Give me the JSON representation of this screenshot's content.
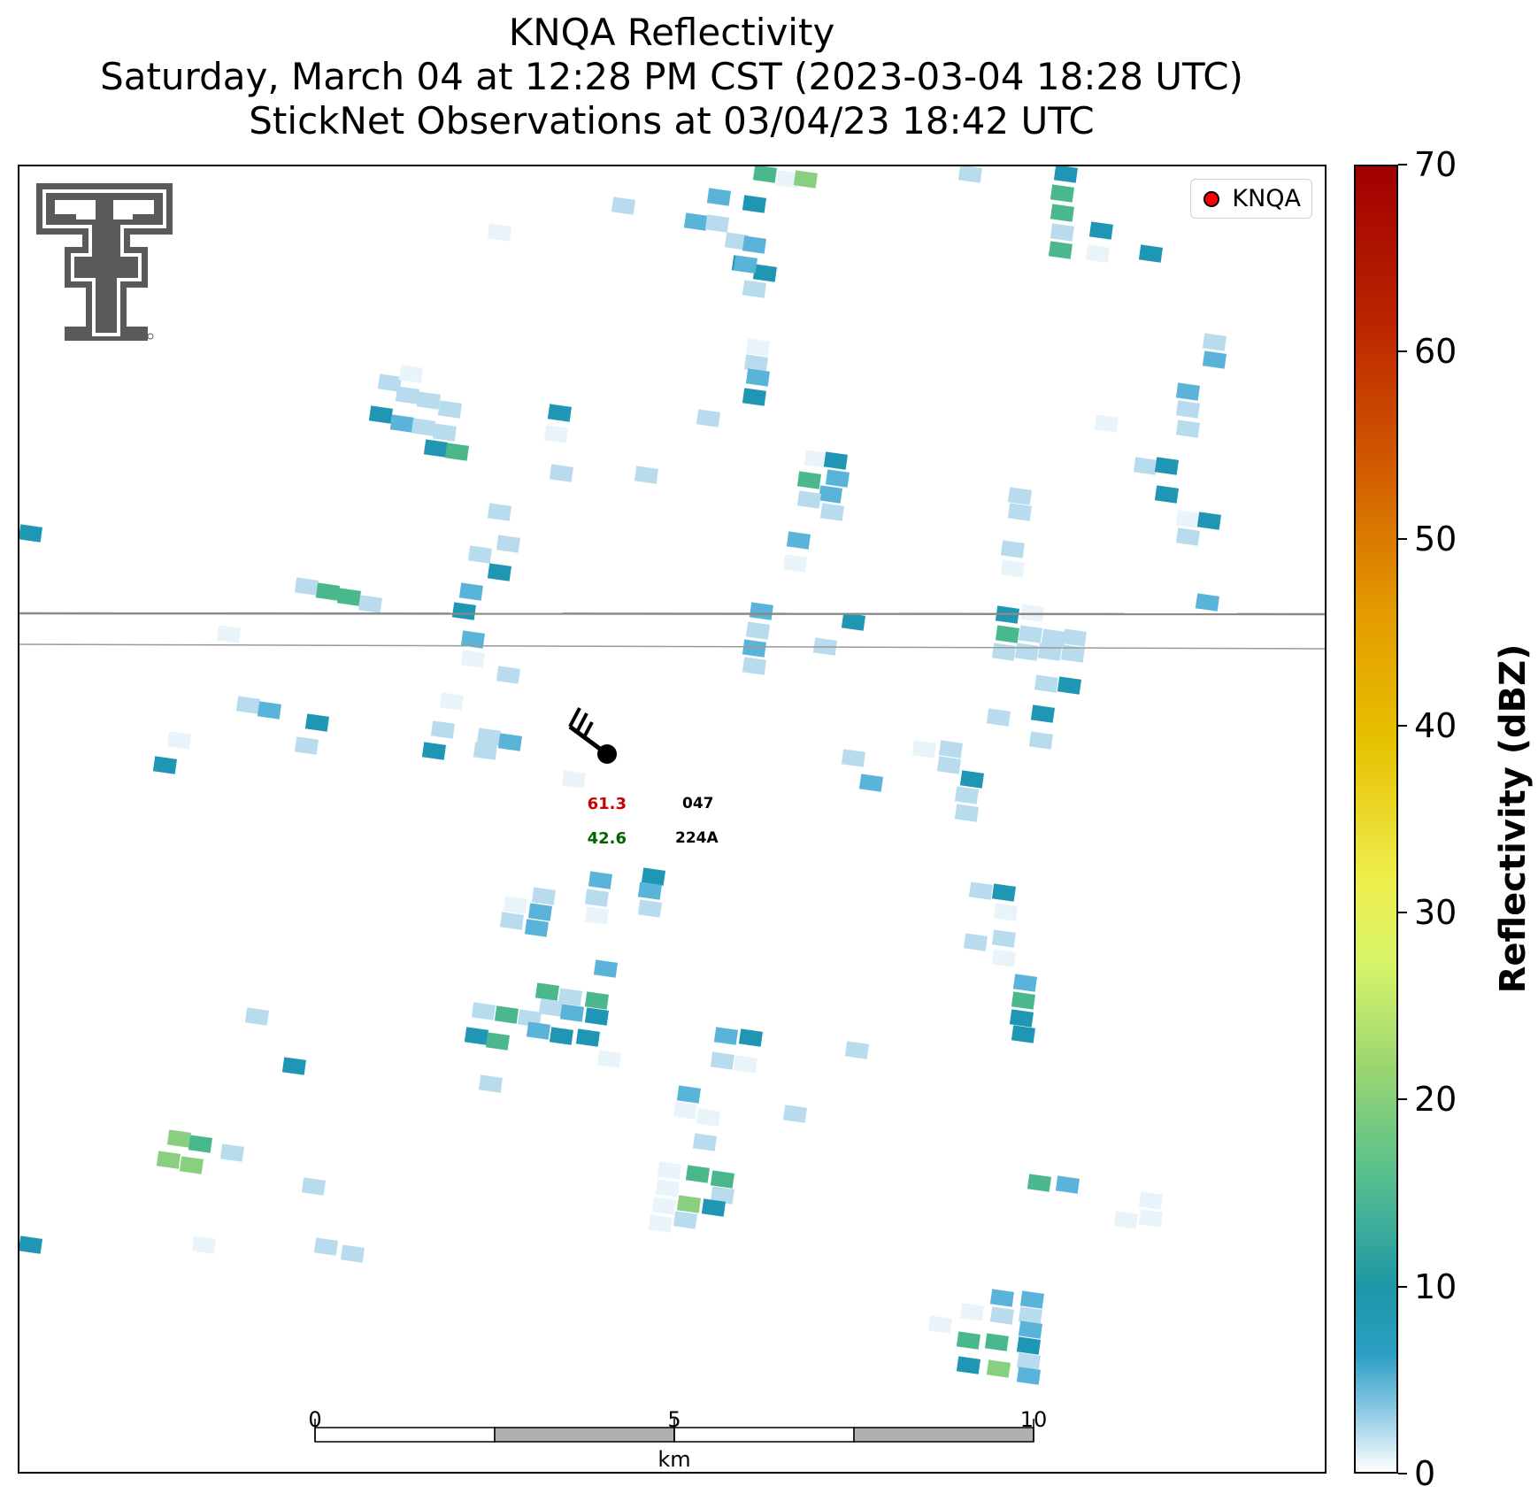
{
  "title": {
    "line1": "KNQA Reflectivity",
    "line2": "Saturday, March 04 at 12:28 PM CST (2023-03-04 18:28 UTC)",
    "line3": "StickNet Observations at 03/04/23 18:42 UTC"
  },
  "legend": {
    "label": "KNQA",
    "marker_color": "#ff0000"
  },
  "station": {
    "temperature": "61.3",
    "dewpoint": "42.6",
    "pressure_code": "047",
    "station_id": "224A",
    "temperature_color": "#cc0000",
    "dewpoint_color": "#006400"
  },
  "scale_bar": {
    "labels": [
      "0",
      "5",
      "10"
    ],
    "unit": "km"
  },
  "colorbar": {
    "label": "Reflectivity (dBZ)",
    "ticks": [
      "0",
      "10",
      "20",
      "30",
      "40",
      "50",
      "60",
      "70"
    ],
    "min": 0,
    "max": 70
  },
  "logo": {
    "name": "texas-tech-double-t-logo",
    "color": "#5a5a5a"
  },
  "colors": {
    "very_light": "#e8f3fa",
    "light_blue": "#b8dcee",
    "medium_blue": "#5ab4da",
    "teal": "#1e96b4",
    "sea_green": "#4ab88c",
    "light_green": "#88d080"
  }
}
